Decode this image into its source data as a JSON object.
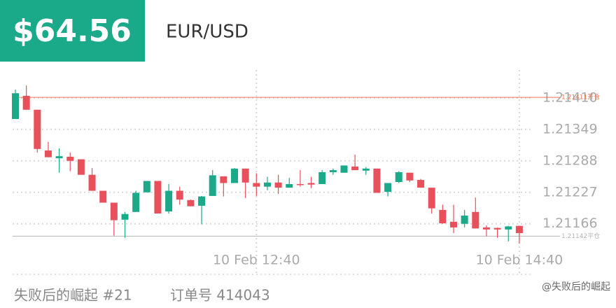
{
  "header": {
    "amount": "$64.56",
    "symbol": "EUR/USD"
  },
  "chart_data": {
    "type": "candlestick",
    "categories": [
      null,
      null,
      null,
      null,
      null,
      null,
      null,
      null,
      null,
      null,
      null,
      null,
      null,
      null,
      null,
      null,
      null,
      null,
      null,
      null,
      null,
      null,
      "10 Feb 12:40",
      null,
      null,
      null,
      null,
      null,
      null,
      null,
      null,
      null,
      null,
      null,
      null,
      null,
      null,
      null,
      null,
      null,
      null,
      null,
      null,
      null,
      null,
      null,
      "10 Feb 14:40"
    ],
    "open": [
      1.21369,
      1.21414,
      1.21387,
      1.21308,
      1.21293,
      1.21296,
      1.21291,
      1.21261,
      1.2123,
      1.21207,
      1.21174,
      1.21189,
      1.21227,
      1.21249,
      1.2119,
      1.2123,
      1.21212,
      1.21201,
      1.2122,
      1.21258,
      1.21245,
      1.21273,
      1.21245,
      1.21238,
      1.21246,
      1.21236,
      1.21243,
      1.21245,
      1.21243,
      1.21266,
      1.21265,
      1.21277,
      1.21269,
      1.21273,
      1.21228,
      1.21247,
      1.21265,
      1.21251,
      1.21236,
      1.21193,
      1.2117,
      1.21166,
      1.21189,
      1.21159,
      1.21158,
      1.21155,
      1.21162
    ],
    "high": [
      1.21426,
      1.21434,
      1.21387,
      1.21325,
      1.21312,
      1.21304,
      1.21291,
      1.21274,
      1.2123,
      1.21207,
      1.21189,
      1.2123,
      1.21249,
      1.21249,
      1.21243,
      1.21238,
      1.21213,
      1.2122,
      1.2127,
      1.21258,
      1.21274,
      1.21273,
      1.21264,
      1.21257,
      1.21261,
      1.21255,
      1.2127,
      1.21257,
      1.2127,
      1.21273,
      1.21279,
      1.213,
      1.21276,
      1.21273,
      1.21245,
      1.21268,
      1.21265,
      1.21253,
      1.21236,
      1.21203,
      1.21203,
      1.21193,
      1.21217,
      1.21163,
      1.21159,
      1.21162,
      1.21162
    ],
    "low": [
      1.21369,
      1.21387,
      1.21304,
      1.21295,
      1.21265,
      1.21268,
      1.21261,
      1.2123,
      1.21207,
      1.21143,
      1.21139,
      1.21189,
      1.21227,
      1.21186,
      1.21186,
      1.21203,
      1.212,
      1.21165,
      1.2122,
      1.21219,
      1.21245,
      1.21216,
      1.2122,
      1.21231,
      1.21224,
      1.21236,
      1.21238,
      1.21235,
      1.21243,
      1.21261,
      1.21265,
      1.2127,
      1.21261,
      1.21226,
      1.21219,
      1.21245,
      1.21247,
      1.21236,
      1.21186,
      1.21166,
      1.21148,
      1.21159,
      1.21157,
      1.21142,
      1.21139,
      1.21132,
      1.21128
    ],
    "close": [
      1.21419,
      1.21387,
      1.21311,
      1.21295,
      1.21297,
      1.21288,
      1.21261,
      1.2123,
      1.21207,
      1.21173,
      1.21185,
      1.21226,
      1.21249,
      1.21186,
      1.2123,
      1.21213,
      1.212,
      1.21219,
      1.2126,
      1.21245,
      1.21273,
      1.21246,
      1.21238,
      1.21246,
      1.21236,
      1.21243,
      1.21242,
      1.21242,
      1.21266,
      1.2127,
      1.21279,
      1.2127,
      1.21273,
      1.21226,
      1.21245,
      1.21266,
      1.2125,
      1.21236,
      1.21196,
      1.21167,
      1.21159,
      1.21182,
      1.21157,
      1.21155,
      1.21155,
      1.21161,
      1.21148
    ],
    "up_color": "#1aaa8a",
    "down_color": "#e8505b",
    "ylim": [
      1.21068,
      1.21464
    ],
    "yticks": [
      {
        "value": 1.2141,
        "label": "1.21410"
      },
      1.21349,
      1.21288,
      1.21227,
      1.21166
    ],
    "grid": true,
    "reference_lines": [
      {
        "value": 1.21411,
        "label": "1.21411开仓",
        "color": "#f0714f"
      },
      {
        "value": 1.21142,
        "label": "1.21142平仓",
        "color": "#b5b5b5"
      }
    ]
  },
  "footer": {
    "account": "失败后的崛起 #21",
    "order": "订单号 414043",
    "watermark": "@失败后的崛起"
  }
}
